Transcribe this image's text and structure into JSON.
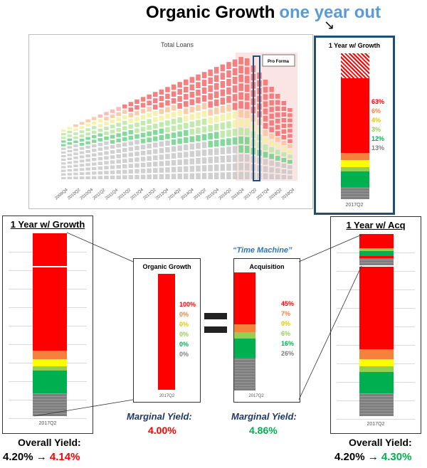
{
  "header": {
    "title_main": "Organic Growth",
    "title_accent": "one year out"
  },
  "main_chart": {
    "title": "Total Loans",
    "legend": "Pro Forma",
    "x_ticks": [
      "2009Q4",
      "2010Q2",
      "2010Q4",
      "2011Q2",
      "2011Q4",
      "2012Q2",
      "2012Q4",
      "2013Q2",
      "2013Q4",
      "2014Q2",
      "2014Q4",
      "2015Q2",
      "2015Q4",
      "2016Q2",
      "2016Q4",
      "2017Q2",
      "2017Q4",
      "2018Q2",
      "2018Q4"
    ]
  },
  "top_right": {
    "title": "1 Year w/ Growth",
    "x_label": "2017Q2",
    "pcts": [
      "63%",
      "6%",
      "4%",
      "3%",
      "12%",
      "13%"
    ]
  },
  "left_panel": {
    "title": "1 Year w/ Growth",
    "x_label": "2017Q2"
  },
  "right_panel": {
    "title": "1 Year w/ Acq",
    "x_label": "2017Q2"
  },
  "organic": {
    "title": "Organic Growth",
    "x_label": "2017Q2",
    "pcts": [
      "100%",
      "0%",
      "0%",
      "0%",
      "0%",
      "0%"
    ]
  },
  "acquisition": {
    "title": "Acquisition",
    "x_label": "2017Q2",
    "pcts": [
      "45%",
      "7%",
      "0%",
      "6%",
      "16%",
      "26%"
    ]
  },
  "time_machine": "“Time Machine”",
  "marginal": {
    "label_left": "Marginal Yield:",
    "value_left": "4.00%",
    "label_right": "Marginal Yield:",
    "value_right": "4.86%"
  },
  "overall": {
    "left_label": "Overall Yield:",
    "left_from": "4.20% →",
    "left_to": "4.14%",
    "right_label": "Overall Yield:",
    "right_from": "4.20% →",
    "right_to": "4.30%"
  },
  "colors": {
    "red": "#ff0000",
    "orange": "#f4823c",
    "yellow": "#ffff00",
    "lightgreen": "#92d050",
    "green": "#00b050",
    "gray": "#7f7f7f",
    "accent": "#5b9bd5",
    "navy": "#1f4e79"
  }
}
